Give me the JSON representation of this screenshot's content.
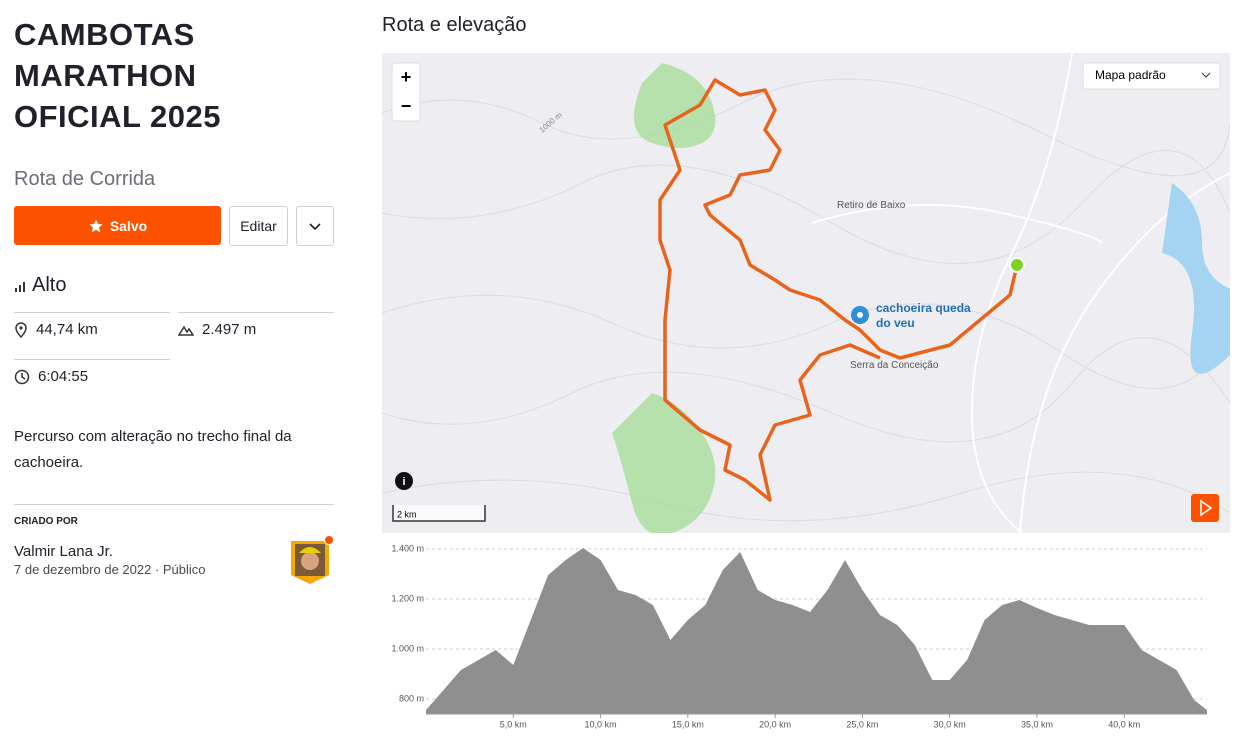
{
  "header": {
    "title": "CAMBOTAS MARATHON OFICIAL 2025",
    "subtitle": "Rota de Corrida"
  },
  "actions": {
    "save": "Salvo",
    "edit": "Editar"
  },
  "difficulty": "Alto",
  "stats": {
    "distance": "44,74 km",
    "elevation_gain": "2.497 m",
    "moving_time": "6:04:55"
  },
  "description": "Percurso com alteração no trecho final da cachoeira.",
  "creator": {
    "label": "CRIADO POR",
    "name": "Valmir Lana Jr.",
    "date": "7 de dezembro de 2022",
    "visibility": "Público"
  },
  "section_title": "Rota e elevação",
  "map": {
    "style": "Mapa padrão",
    "scale": "2 km",
    "zoom_in": "+",
    "zoom_out": "−",
    "labels": [
      "Retiro de Baixo",
      "cachoeira queda",
      "do veu",
      "Serra da Conceição",
      "1000 m"
    ]
  },
  "chart_data": {
    "type": "area",
    "color": "#8f8f8f",
    "grid": true,
    "x": [
      0,
      1,
      2,
      3,
      4,
      5,
      6,
      7,
      8,
      9,
      10,
      11,
      12,
      13,
      14,
      15,
      16,
      17,
      18,
      19,
      20,
      21,
      22,
      23,
      24,
      25,
      26,
      27,
      28,
      29,
      30,
      31,
      32,
      33,
      34,
      35,
      36,
      37,
      38,
      39,
      40,
      41,
      42,
      43,
      44,
      44.74
    ],
    "values": [
      756,
      836,
      916,
      956,
      996,
      936,
      1116,
      1296,
      1356,
      1404,
      1356,
      1236,
      1216,
      1176,
      1036,
      1116,
      1176,
      1316,
      1388,
      1236,
      1196,
      1176,
      1148,
      1236,
      1356,
      1236,
      1136,
      1096,
      1016,
      876,
      876,
      956,
      1116,
      1176,
      1196,
      1164,
      1136,
      1116,
      1096,
      1096,
      1096,
      996,
      956,
      916,
      796,
      756
    ],
    "xlim": [
      0,
      44.74
    ],
    "ylim": [
      740,
      1420
    ],
    "xticks": [
      {
        "value": 5,
        "label": "5,0 km"
      },
      {
        "value": 10,
        "label": "10,0 km"
      },
      {
        "value": 15,
        "label": "15,0 km"
      },
      {
        "value": 20,
        "label": "20,0 km"
      },
      {
        "value": 25,
        "label": "25,0 km"
      },
      {
        "value": 30,
        "label": "30,0 km"
      },
      {
        "value": 35,
        "label": "35,0 km"
      },
      {
        "value": 40,
        "label": "40,0 km"
      }
    ],
    "yticks": [
      {
        "value": 800,
        "label": "800 m"
      },
      {
        "value": 1000,
        "label": "1.000 m"
      },
      {
        "value": 1200,
        "label": "1.200 m"
      },
      {
        "value": 1400,
        "label": "1.400 m"
      }
    ]
  }
}
